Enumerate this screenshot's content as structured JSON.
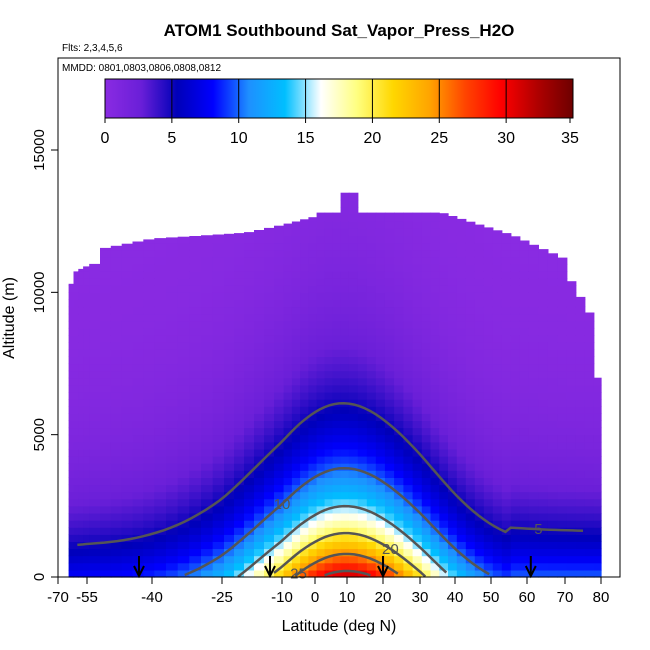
{
  "chart_data": {
    "type": "heatmap",
    "title": "ATOM1 Southbound Sat_Vapor_Press_H2O",
    "flights_label": "Flts: 2,3,4,5,6",
    "dates_label": "MMDD: 0801,0803,0806,0808,0812",
    "xlabel": "Latitude (deg N)",
    "ylabel": "Altitude (m)",
    "xlim": [
      -70,
      80
    ],
    "ylim": [
      0,
      17500
    ],
    "x_tick_labels": [
      "-70",
      "-55",
      "-40",
      "-25",
      "-10",
      "0",
      "10",
      "20",
      "30",
      "40",
      "50",
      "60",
      "70",
      "80"
    ],
    "y_tick_labels": [
      "0",
      "5000",
      "10000",
      "15000"
    ],
    "colorbar": {
      "min": 0,
      "max": 35,
      "tick_labels": [
        "0",
        "5",
        "10",
        "15",
        "20",
        "25",
        "30",
        "35"
      ],
      "colors": [
        "#8a2be2",
        "#6a1fd8",
        "#0000b8",
        "#0000ff",
        "#1e90ff",
        "#00bfff",
        "#ffffff",
        "#ffff80",
        "#ffd700",
        "#ffa500",
        "#ff4500",
        "#ff0000",
        "#b00000",
        "#6e0000"
      ]
    },
    "contour_levels": [
      "5",
      "10",
      "15",
      "20",
      "25",
      "30"
    ],
    "field_description": {
      "surface_value_equator": 32,
      "surface_value_south_edge": 8,
      "surface_value_north_edge": 10,
      "data_top_altitude_m": 13500
    },
    "flight_markers_latitude": [
      -43,
      -13,
      20,
      61
    ]
  }
}
